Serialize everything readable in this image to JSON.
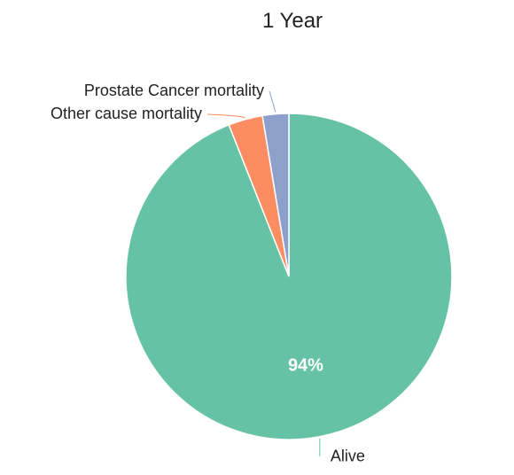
{
  "chart_data": {
    "type": "pie",
    "title": "1 Year",
    "slices": [
      {
        "label": "Alive",
        "value": 94,
        "color": "#66c2a5",
        "value_label": "94%"
      },
      {
        "label": "Other cause mortality",
        "value": 3.4,
        "color": "#fc8d62",
        "value_label": ""
      },
      {
        "label": "Prostate Cancer mortality",
        "value": 2.6,
        "color": "#8da0cb",
        "value_label": ""
      }
    ]
  }
}
